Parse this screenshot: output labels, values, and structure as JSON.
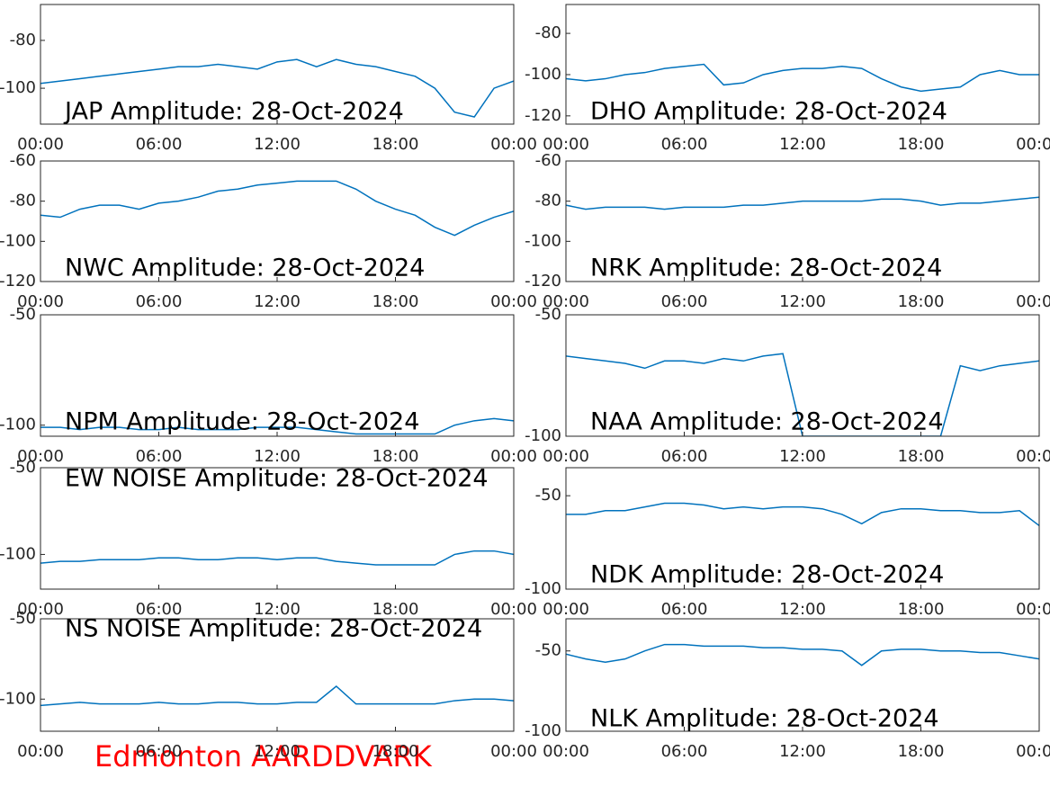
{
  "chart_data": [
    {
      "type": "line",
      "title": "JAP Amplitude: 28-Oct-2024",
      "color": "#0072bd",
      "x": [
        0,
        1,
        2,
        3,
        4,
        5,
        6,
        7,
        8,
        9,
        10,
        11,
        12,
        13,
        14,
        15,
        16,
        17,
        18,
        19,
        20,
        21,
        22,
        23,
        24
      ],
      "values": [
        -98,
        -97,
        -96,
        -95,
        -94,
        -93,
        -92,
        -91,
        -91,
        -90,
        -91,
        -92,
        -89,
        -88,
        -91,
        -88,
        -90,
        -91,
        -93,
        -95,
        -100,
        -110,
        -112,
        -100,
        -97
      ],
      "xlim": [
        0,
        24
      ],
      "xticks": [
        {
          "value": 0,
          "label": "00:00"
        },
        {
          "value": 6,
          "label": "06:00"
        },
        {
          "value": 12,
          "label": "12:00"
        },
        {
          "value": 18,
          "label": "18:00"
        },
        {
          "value": 24,
          "label": "00:00"
        }
      ],
      "ylim": [
        -115,
        -65
      ],
      "yticks": [
        -100,
        -80
      ]
    },
    {
      "type": "line",
      "title": "DHO Amplitude: 28-Oct-2024",
      "color": "#0072bd",
      "x": [
        0,
        1,
        2,
        3,
        4,
        5,
        6,
        7,
        8,
        9,
        10,
        11,
        12,
        13,
        14,
        15,
        16,
        17,
        18,
        19,
        20,
        21,
        22,
        23,
        24
      ],
      "values": [
        -102,
        -103,
        -102,
        -100,
        -99,
        -97,
        -96,
        -95,
        -105,
        -104,
        -100,
        -98,
        -97,
        -97,
        -96,
        -97,
        -102,
        -106,
        -108,
        -107,
        -106,
        -100,
        -98,
        -100,
        -100
      ],
      "xlim": [
        0,
        24
      ],
      "xticks": [
        {
          "value": 0,
          "label": "00:00"
        },
        {
          "value": 6,
          "label": "06:00"
        },
        {
          "value": 12,
          "label": "12:00"
        },
        {
          "value": 18,
          "label": "18:00"
        },
        {
          "value": 24,
          "label": "00:00"
        }
      ],
      "ylim": [
        -124,
        -66
      ],
      "yticks": [
        -120,
        -100,
        -80
      ]
    },
    {
      "type": "line",
      "title": "NWC Amplitude: 28-Oct-2024",
      "color": "#0072bd",
      "x": [
        0,
        1,
        2,
        3,
        4,
        5,
        6,
        7,
        8,
        9,
        10,
        11,
        12,
        13,
        14,
        15,
        16,
        17,
        18,
        19,
        20,
        21,
        22,
        23,
        24
      ],
      "values": [
        -87,
        -88,
        -84,
        -82,
        -82,
        -84,
        -81,
        -80,
        -78,
        -75,
        -74,
        -72,
        -71,
        -70,
        -70,
        -70,
        -74,
        -80,
        -84,
        -87,
        -93,
        -97,
        -92,
        -88,
        -85
      ],
      "xlim": [
        0,
        24
      ],
      "xticks": [
        {
          "value": 0,
          "label": "00:00"
        },
        {
          "value": 6,
          "label": "06:00"
        },
        {
          "value": 12,
          "label": "12:00"
        },
        {
          "value": 18,
          "label": "18:00"
        },
        {
          "value": 24,
          "label": "00:00"
        }
      ],
      "ylim": [
        -120,
        -60
      ],
      "yticks": [
        -120,
        -100,
        -80,
        -60
      ]
    },
    {
      "type": "line",
      "title": "NRK Amplitude: 28-Oct-2024",
      "color": "#0072bd",
      "x": [
        0,
        1,
        2,
        3,
        4,
        5,
        6,
        7,
        8,
        9,
        10,
        11,
        12,
        13,
        14,
        15,
        16,
        17,
        18,
        19,
        20,
        21,
        22,
        23,
        24
      ],
      "values": [
        -82,
        -84,
        -83,
        -83,
        -83,
        -84,
        -83,
        -83,
        -83,
        -82,
        -82,
        -81,
        -80,
        -80,
        -80,
        -80,
        -79,
        -79,
        -80,
        -82,
        -81,
        -81,
        -80,
        -79,
        -78
      ],
      "xlim": [
        0,
        24
      ],
      "xticks": [
        {
          "value": 0,
          "label": "00:00"
        },
        {
          "value": 6,
          "label": "06:00"
        },
        {
          "value": 12,
          "label": "12:00"
        },
        {
          "value": 18,
          "label": "18:00"
        },
        {
          "value": 24,
          "label": "00:00"
        }
      ],
      "ylim": [
        -120,
        -60
      ],
      "yticks": [
        -120,
        -100,
        -80,
        -60
      ]
    },
    {
      "type": "line",
      "title": "NPM Amplitude: 28-Oct-2024",
      "color": "#0072bd",
      "x": [
        0,
        1,
        2,
        3,
        4,
        5,
        6,
        7,
        8,
        9,
        10,
        11,
        12,
        13,
        14,
        15,
        16,
        17,
        18,
        19,
        20,
        21,
        22,
        23,
        24
      ],
      "values": [
        -101,
        -101,
        -102,
        -101,
        -101,
        -102,
        -102,
        -101,
        -102,
        -102,
        -102,
        -101,
        -101,
        -101,
        -102,
        -103,
        -104,
        -104,
        -104,
        -104,
        -104,
        -100,
        -98,
        -97,
        -98
      ],
      "xlim": [
        0,
        24
      ],
      "xticks": [
        {
          "value": 0,
          "label": "00:00"
        },
        {
          "value": 6,
          "label": "06:00"
        },
        {
          "value": 12,
          "label": "12:00"
        },
        {
          "value": 18,
          "label": "18:00"
        },
        {
          "value": 24,
          "label": "00:00"
        }
      ],
      "ylim": [
        -105,
        -50
      ],
      "yticks": [
        -100,
        -50
      ]
    },
    {
      "type": "line",
      "title": "NAA Amplitude: 28-Oct-2024",
      "color": "#0072bd",
      "x": [
        0,
        1,
        2,
        3,
        4,
        5,
        6,
        7,
        8,
        9,
        10,
        11,
        12,
        13,
        14,
        15,
        16,
        17,
        18,
        19,
        20,
        21,
        22,
        23,
        24
      ],
      "values": [
        -67,
        -68,
        -69,
        -70,
        -72,
        -69,
        -69,
        -70,
        -68,
        -69,
        -67,
        -66,
        -100,
        -100,
        -100,
        -100,
        -100,
        -100,
        -100,
        -100,
        -71,
        -73,
        -71,
        -70,
        -69
      ],
      "xlim": [
        0,
        24
      ],
      "xticks": [
        {
          "value": 0,
          "label": "00:00"
        },
        {
          "value": 6,
          "label": "06:00"
        },
        {
          "value": 12,
          "label": "12:00"
        },
        {
          "value": 18,
          "label": "18:00"
        },
        {
          "value": 24,
          "label": "00:00"
        }
      ],
      "ylim": [
        -100,
        -50
      ],
      "yticks": [
        -100,
        -50
      ]
    },
    {
      "type": "line",
      "title": "EW NOISE Amplitude: 28-Oct-2024",
      "color": "#0072bd",
      "x": [
        0,
        1,
        2,
        3,
        4,
        5,
        6,
        7,
        8,
        9,
        10,
        11,
        12,
        13,
        14,
        15,
        16,
        17,
        18,
        19,
        20,
        21,
        22,
        23,
        24
      ],
      "values": [
        -105,
        -104,
        -104,
        -103,
        -103,
        -103,
        -102,
        -102,
        -103,
        -103,
        -102,
        -102,
        -103,
        -102,
        -102,
        -104,
        -105,
        -106,
        -106,
        -106,
        -106,
        -100,
        -98,
        -98,
        -100
      ],
      "xlim": [
        0,
        24
      ],
      "xticks": [
        {
          "value": 0,
          "label": "00:00"
        },
        {
          "value": 6,
          "label": "06:00"
        },
        {
          "value": 12,
          "label": "12:00"
        },
        {
          "value": 18,
          "label": "18:00"
        },
        {
          "value": 24,
          "label": "00:00"
        }
      ],
      "ylim": [
        -120,
        -50
      ],
      "yticks": [
        -100,
        -50
      ]
    },
    {
      "type": "line",
      "title": "NDK Amplitude: 28-Oct-2024",
      "color": "#0072bd",
      "x": [
        0,
        1,
        2,
        3,
        4,
        5,
        6,
        7,
        8,
        9,
        10,
        11,
        12,
        13,
        14,
        15,
        16,
        17,
        18,
        19,
        20,
        21,
        22,
        23,
        24
      ],
      "values": [
        -60,
        -60,
        -58,
        -58,
        -56,
        -54,
        -54,
        -55,
        -57,
        -56,
        -57,
        -56,
        -56,
        -57,
        -60,
        -65,
        -59,
        -57,
        -57,
        -58,
        -58,
        -59,
        -59,
        -58,
        -66
      ],
      "xlim": [
        0,
        24
      ],
      "xticks": [
        {
          "value": 0,
          "label": "00:00"
        },
        {
          "value": 6,
          "label": "06:00"
        },
        {
          "value": 12,
          "label": "12:00"
        },
        {
          "value": 18,
          "label": "18:00"
        },
        {
          "value": 24,
          "label": "00:00"
        }
      ],
      "ylim": [
        -100,
        -35
      ],
      "yticks": [
        -100,
        -50
      ]
    },
    {
      "type": "line",
      "title": "NS NOISE Amplitude: 28-Oct-2024",
      "color": "#0072bd",
      "x": [
        0,
        1,
        2,
        3,
        4,
        5,
        6,
        7,
        8,
        9,
        10,
        11,
        12,
        13,
        14,
        15,
        16,
        17,
        18,
        19,
        20,
        21,
        22,
        23,
        24
      ],
      "values": [
        -104,
        -103,
        -102,
        -103,
        -103,
        -103,
        -102,
        -103,
        -103,
        -102,
        -102,
        -103,
        -103,
        -102,
        -102,
        -92,
        -103,
        -103,
        -103,
        -103,
        -103,
        -101,
        -100,
        -100,
        -101
      ],
      "xlim": [
        0,
        24
      ],
      "xticks": [
        {
          "value": 0,
          "label": "00:00"
        },
        {
          "value": 6,
          "label": "06:00"
        },
        {
          "value": 12,
          "label": "12:00"
        },
        {
          "value": 18,
          "label": "18:00"
        },
        {
          "value": 24,
          "label": "00:00"
        }
      ],
      "ylim": [
        -120,
        -50
      ],
      "yticks": [
        -100,
        -50
      ]
    },
    {
      "type": "line",
      "title": "NLK Amplitude: 28-Oct-2024",
      "color": "#0072bd",
      "x": [
        0,
        1,
        2,
        3,
        4,
        5,
        6,
        7,
        8,
        9,
        10,
        11,
        12,
        13,
        14,
        15,
        16,
        17,
        18,
        19,
        20,
        21,
        22,
        23,
        24
      ],
      "values": [
        -52,
        -55,
        -57,
        -55,
        -50,
        -46,
        -46,
        -47,
        -47,
        -47,
        -48,
        -48,
        -49,
        -49,
        -50,
        -59,
        -50,
        -49,
        -49,
        -50,
        -50,
        -51,
        -51,
        -53,
        -55
      ],
      "xlim": [
        0,
        24
      ],
      "xticks": [
        {
          "value": 0,
          "label": "00:00"
        },
        {
          "value": 6,
          "label": "06:00"
        },
        {
          "value": 12,
          "label": "12:00"
        },
        {
          "value": 18,
          "label": "18:00"
        },
        {
          "value": 24,
          "label": "00:00"
        }
      ],
      "ylim": [
        -100,
        -30
      ],
      "yticks": [
        -100,
        -50
      ]
    }
  ],
  "footer": "Edmonton AARDDVARK"
}
